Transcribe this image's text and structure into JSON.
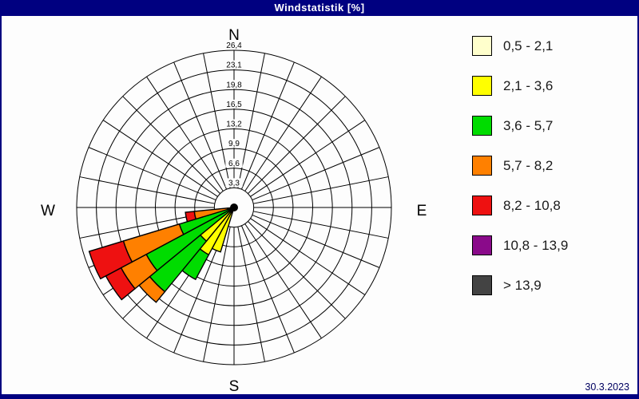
{
  "window": {
    "title": "Windstatistik [%]"
  },
  "footer": {
    "date": "30.3.2023"
  },
  "compass": {
    "n": "N",
    "e": "E",
    "s": "S",
    "w": "W"
  },
  "colors": {
    "frame": "#000080",
    "background": "#fdfdfd",
    "grid": "#000000",
    "title_text": "#ffffff",
    "date_text": "#000060"
  },
  "chart_data": {
    "type": "windrose",
    "title": "Windstatistik [%]",
    "units": "%",
    "ring_step": 3.3,
    "rmax": 26.4,
    "ring_labels": [
      "3,3",
      "6,6",
      "9,9",
      "13,2",
      "16,5",
      "19,8",
      "23,1",
      "26,4"
    ],
    "sector_count": 32,
    "sector_width_deg": 11.25,
    "grid": "polar, 32 spokes every 11.25 deg, 8 rings",
    "legend_position": "right",
    "speed_classes": [
      {
        "label": "0,5 - 2,1",
        "color": "#FFFFCC"
      },
      {
        "label": "2,1 - 3,6",
        "color": "#FFFF00"
      },
      {
        "label": "3,6 - 5,7",
        "color": "#00DC00"
      },
      {
        "label": "5,7 - 8,2",
        "color": "#FF8000"
      },
      {
        "label": "8,2 - 10,8",
        "color": "#EE1111"
      },
      {
        "label": "10,8 - 13,9",
        "color": "#8A0A8A"
      },
      {
        "label": "> 13,9",
        "color": "#434343"
      }
    ],
    "directions": [
      {
        "compass_deg": 202.5,
        "name": "SSW",
        "frequencies": [
          0.3,
          7.5,
          0,
          0,
          0,
          0,
          0
        ]
      },
      {
        "compass_deg": 213.75,
        "name": "SW-by-S",
        "frequencies": [
          0.3,
          8.7,
          4.7,
          0,
          0,
          0,
          0
        ]
      },
      {
        "compass_deg": 225,
        "name": "SW",
        "frequencies": [
          0.3,
          7.0,
          11.0,
          2.3,
          0,
          0,
          0
        ]
      },
      {
        "compass_deg": 236.25,
        "name": "SW-by-W",
        "frequencies": [
          0.2,
          0.5,
          16.0,
          4.8,
          2.9,
          0,
          0
        ]
      },
      {
        "compass_deg": 247.5,
        "name": "WSW",
        "frequencies": [
          0.2,
          0.5,
          8.9,
          9.8,
          6.0,
          0,
          0
        ]
      },
      {
        "compass_deg": 258.75,
        "name": "W-by-S",
        "frequencies": [
          0.2,
          0.3,
          0.6,
          5.6,
          1.5,
          0,
          0
        ]
      }
    ]
  }
}
